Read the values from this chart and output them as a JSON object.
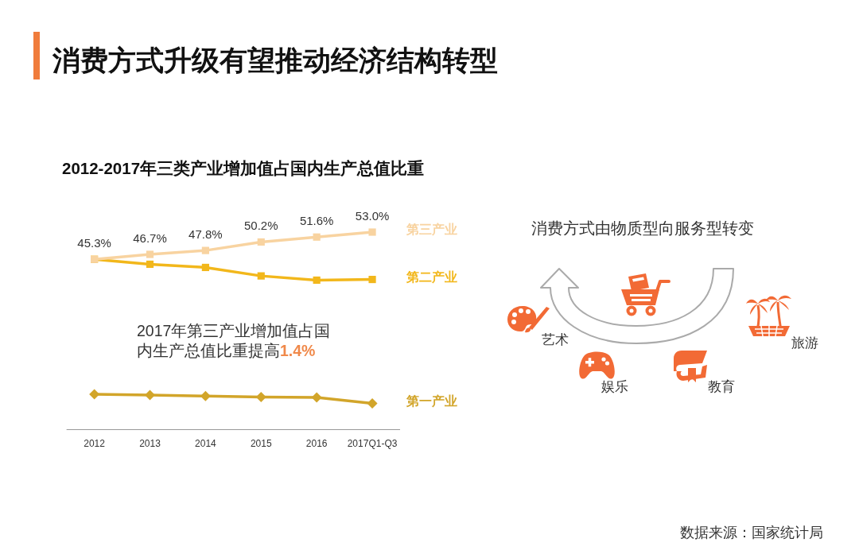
{
  "chart_data": {
    "type": "line",
    "title": "消费方式升级有望推动经济结构转型",
    "subtitle": "2012-2017年三类产业增加值占国内生产总值比重",
    "categories": [
      "2012",
      "2013",
      "2014",
      "2015",
      "2016",
      "2017Q1-Q3"
    ],
    "series": [
      {
        "name": "第三产业",
        "color": "#f8d3a0",
        "marker": "square",
        "values": [
          45.3,
          46.7,
          47.8,
          50.2,
          51.6,
          53.0
        ],
        "value_labels": [
          "45.3%",
          "46.7%",
          "47.8%",
          "50.2%",
          "51.6%",
          "53.0%"
        ]
      },
      {
        "name": "第二产业",
        "color": "#f2b71b",
        "marker": "square",
        "values": [
          45.3,
          43.9,
          43.0,
          40.6,
          39.4,
          39.6
        ]
      },
      {
        "name": "第一产业",
        "color": "#d2a52a",
        "marker": "diamond",
        "values": [
          7.1,
          6.9,
          6.6,
          6.3,
          6.2,
          4.5
        ]
      }
    ],
    "tick_labels": "x",
    "annotations": [
      "2017年第三产业增加值占国内生产总值比重提高1.4%",
      "消费方式由物质型向服务型转变",
      "艺术",
      "娱乐",
      "教育",
      "旅游",
      "数据来源：国家统计局"
    ]
  }
}
